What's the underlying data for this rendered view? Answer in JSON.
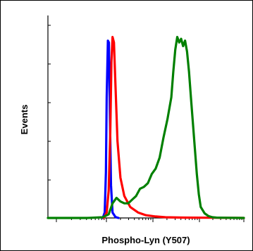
{
  "chart_data": {
    "type": "line",
    "xlabel": "Phospho-Lyn (Y507)",
    "ylabel": "Events",
    "xlim": [
      0,
      100
    ],
    "ylim": [
      0,
      100
    ],
    "grid": false,
    "series": [
      {
        "color": "#0000ff",
        "x": [
          28.0,
          29.0,
          29.6,
          30.0,
          30.6,
          31.1,
          31.6,
          32.2,
          33.0,
          34.5,
          36.0
        ],
        "y": [
          0,
          3,
          25,
          66,
          97,
          96,
          60,
          18,
          3,
          0.5,
          0
        ]
      },
      {
        "color": "#ff0000",
        "x": [
          28.5,
          30.0,
          31.0,
          31.8,
          32.4,
          33.0,
          33.7,
          34.5,
          35.5,
          37.0,
          39.0,
          42.0,
          46.0,
          50.0,
          55.0,
          60.0,
          70.0,
          85.0,
          100.0
        ],
        "y": [
          0,
          3,
          15,
          45,
          85,
          99,
          96,
          72,
          42,
          22,
          12,
          6,
          3,
          1.5,
          0.8,
          0.4,
          0.2,
          0.1,
          0
        ]
      },
      {
        "color": "#008000",
        "x": [
          0,
          20,
          28,
          31,
          33,
          35,
          37,
          39,
          41,
          43,
          45,
          47,
          49,
          51,
          53,
          55,
          57,
          59,
          61,
          63,
          64,
          65,
          66,
          67,
          68,
          69,
          70,
          71,
          72,
          73,
          74,
          75,
          76,
          77,
          78,
          80,
          82,
          84,
          86,
          90,
          100
        ],
        "y": [
          0,
          0,
          0.4,
          2,
          8,
          11,
          9,
          8,
          8,
          10,
          12,
          16,
          17,
          19,
          24,
          27,
          33,
          44,
          54,
          66,
          80,
          92,
          99,
          96,
          98,
          94,
          97,
          91,
          80,
          66,
          52,
          38,
          24,
          13,
          6,
          2.5,
          1,
          0.4,
          0.2,
          0.1,
          0
        ]
      }
    ]
  }
}
